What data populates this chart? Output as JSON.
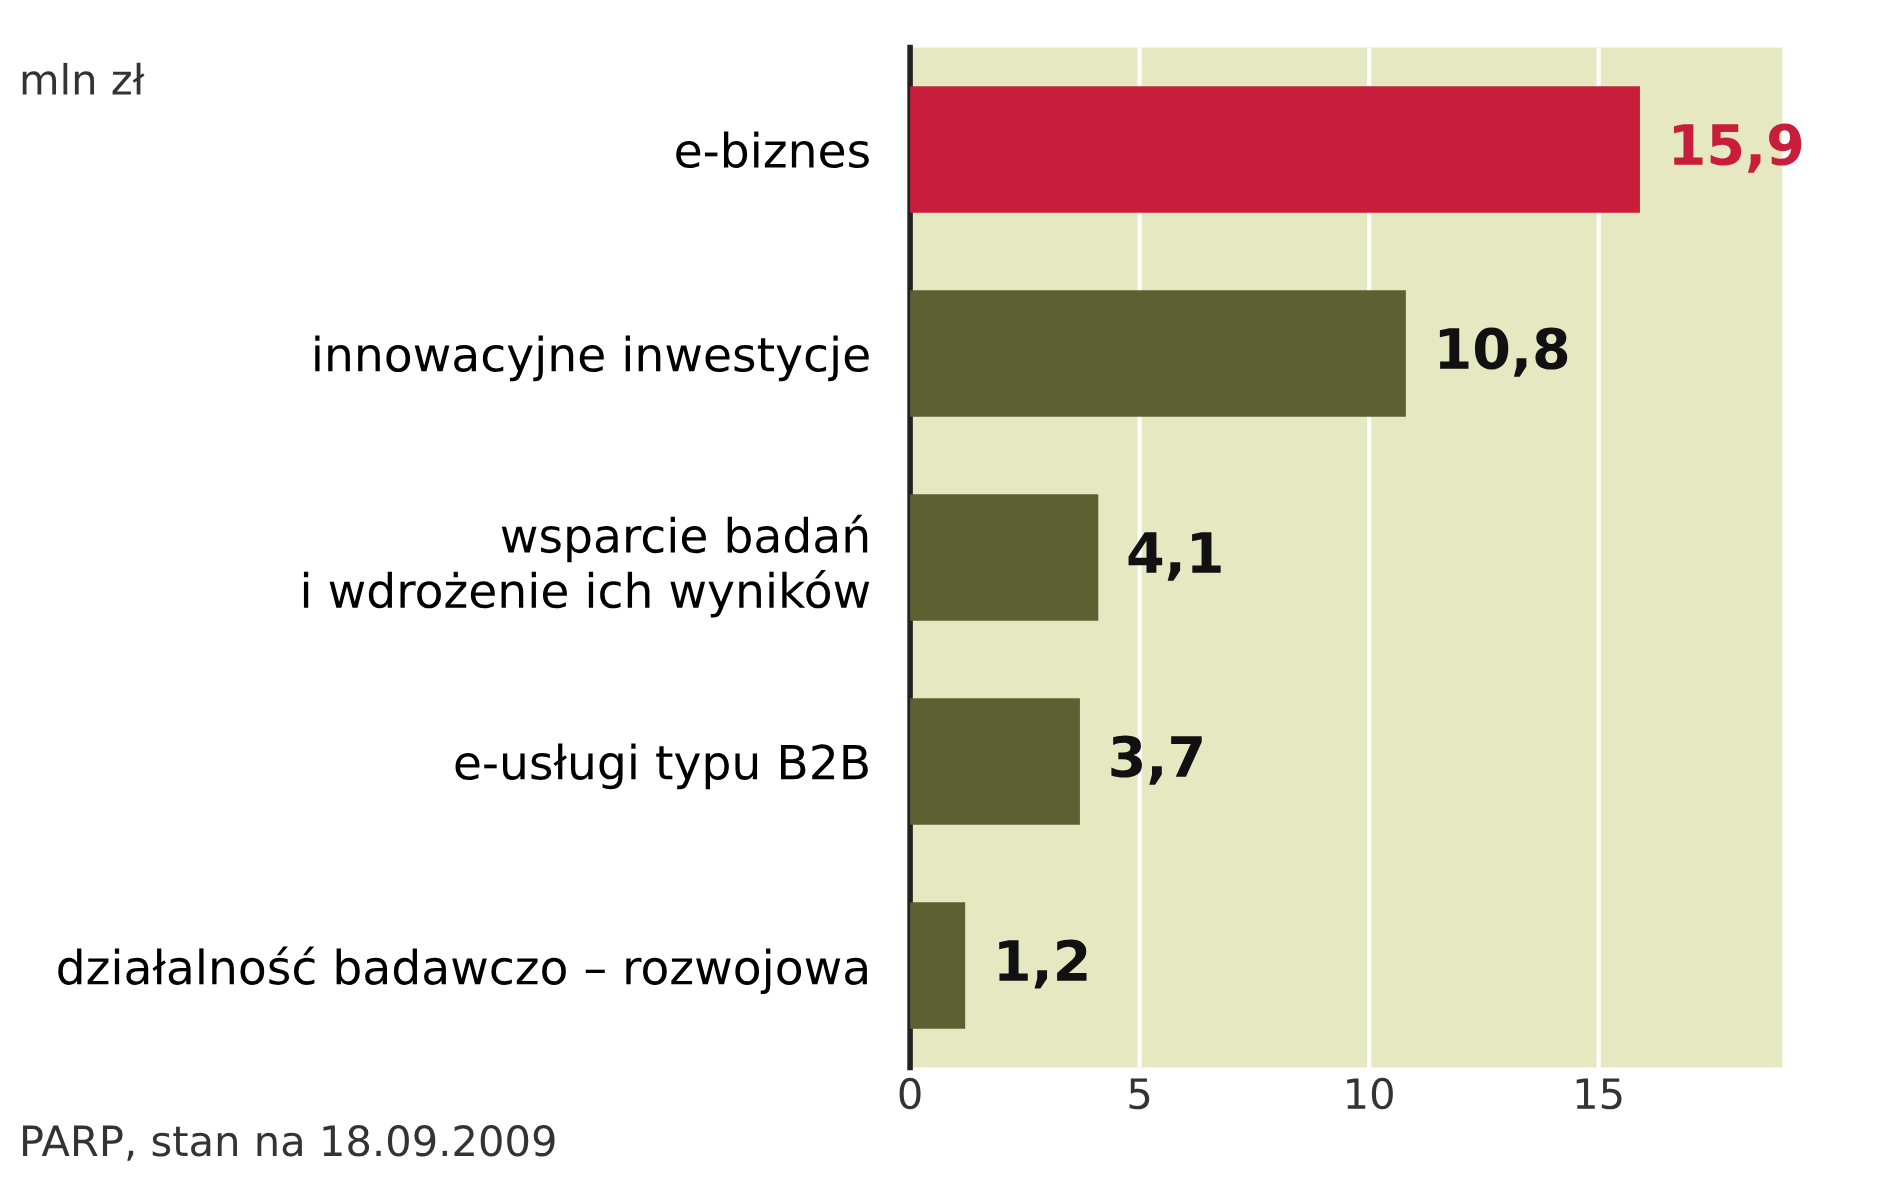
{
  "chart_data": {
    "type": "bar",
    "orientation": "horizontal",
    "categories": [
      "e-biznes",
      "innowacyjne inwestycje",
      "wsparcie badań\ni wdrożenie ich wyników",
      "e-usługi typu B2B",
      "działalność badawczo – rozwojowa"
    ],
    "values": [
      15.9,
      10.8,
      4.1,
      3.7,
      1.2
    ],
    "colors": [
      "#c81e3c",
      "#5b6130",
      "#5b6130",
      "#5b6130",
      "#5b6130"
    ],
    "value_labels": [
      "15,9",
      "10,8",
      "4,1",
      "3,7",
      "1,2"
    ],
    "xlim": [
      0,
      19
    ],
    "xticks": [
      0,
      5,
      10,
      15
    ],
    "grid": "x",
    "annotations": [
      "mln zł",
      "PARP, stan na 18.09.2009"
    ]
  }
}
